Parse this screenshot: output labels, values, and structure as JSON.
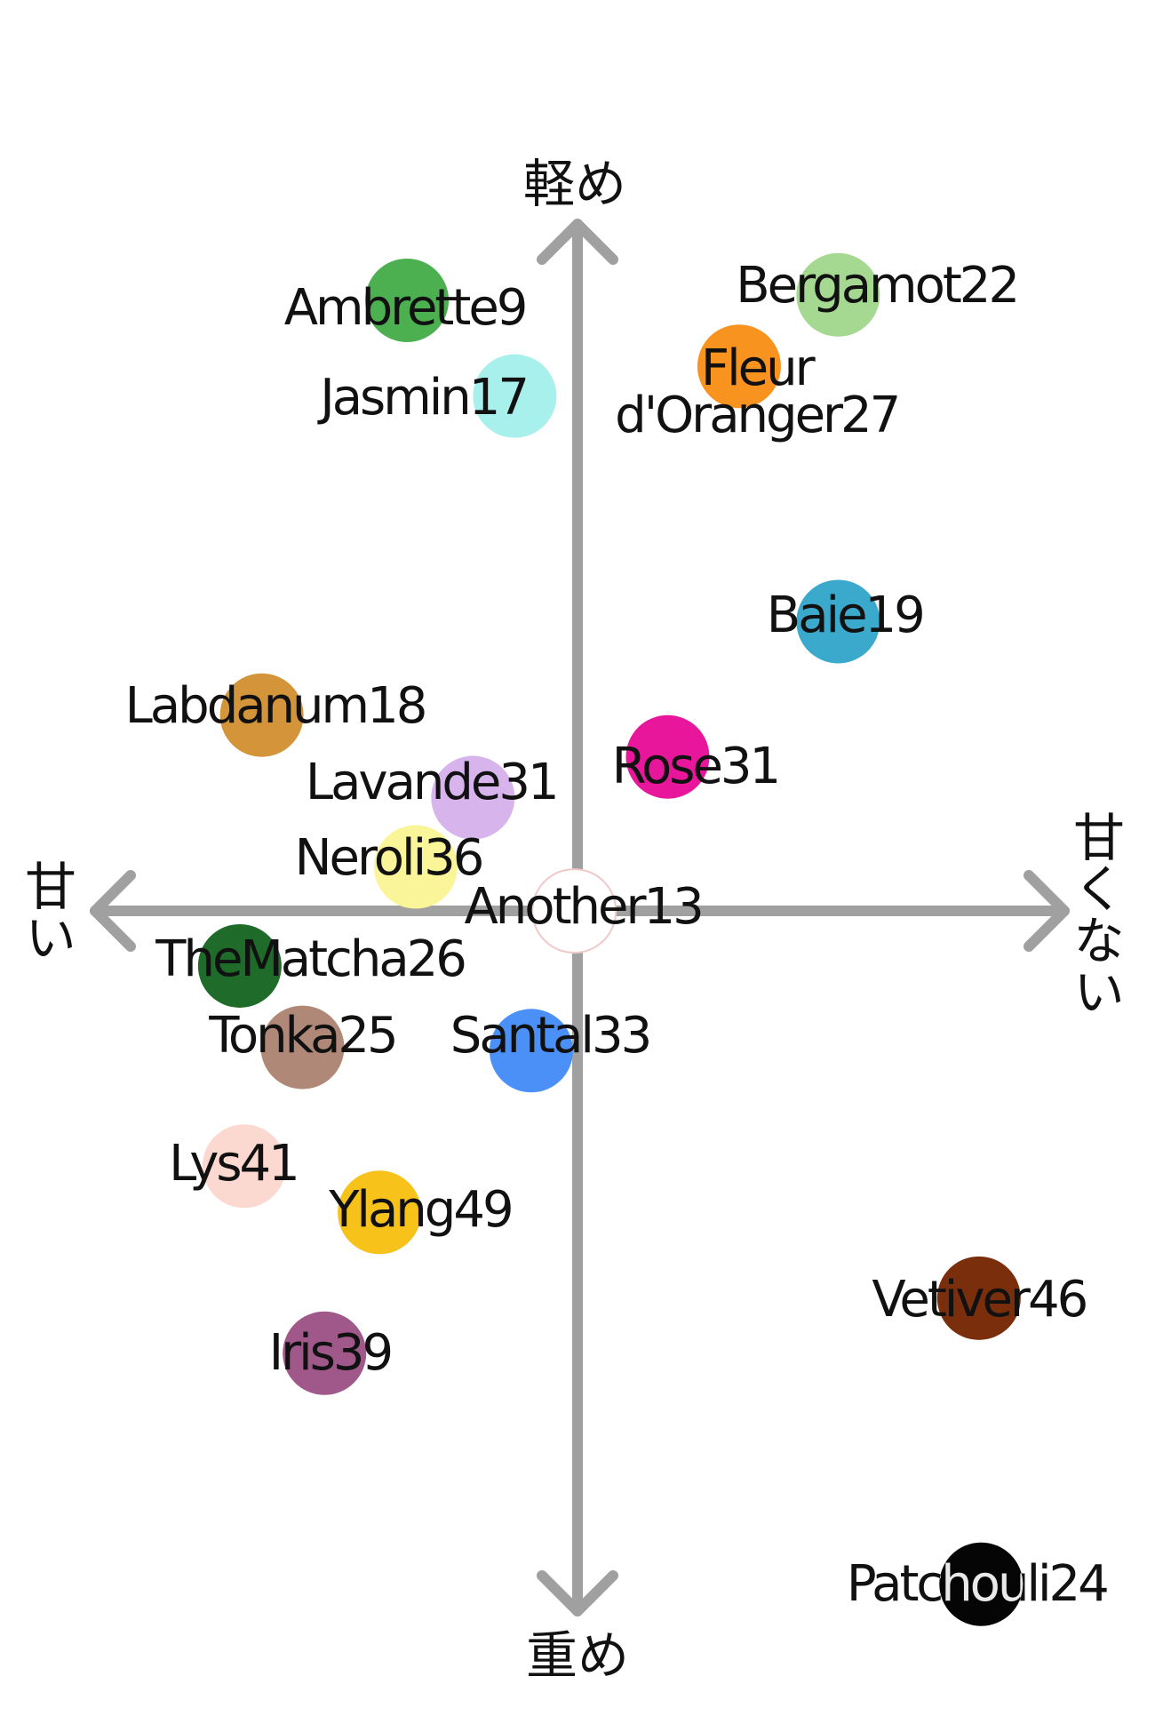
{
  "axes": {
    "top": "軽め",
    "bottom": "重め",
    "left": "甘い",
    "right": "甘くない"
  },
  "nodes": [
    {
      "label": "Ambrette9",
      "color": "#4caf50"
    },
    {
      "label": "Jasmin17",
      "color": "#a8f0ec"
    },
    {
      "label": "Bergamot22",
      "color": "#a5d890"
    },
    {
      "label": "Fleur d'Oranger27",
      "color": "#f7931e"
    },
    {
      "label": "Baie19",
      "color": "#3aa9cc"
    },
    {
      "label": "Labdanum18",
      "color": "#d4943a"
    },
    {
      "label": "Lavande31",
      "color": "#d8b4ec"
    },
    {
      "label": "Rose31",
      "color": "#e8169a"
    },
    {
      "label": "Neroli36",
      "color": "#fbf59a"
    },
    {
      "label": "Another13",
      "color": "#ffffff"
    },
    {
      "label": "TheMatcha26",
      "color": "#1e6b2a"
    },
    {
      "label": "Tonka25",
      "color": "#b08878"
    },
    {
      "label": "Santal33",
      "color": "#4a90f7"
    },
    {
      "label": "Lys41",
      "color": "#fbd8d0"
    },
    {
      "label": "Ylang49",
      "color": "#f7c21a"
    },
    {
      "label": "Iris39",
      "color": "#a0588a"
    },
    {
      "label": "Vetiver46",
      "color": "#7a2e0c"
    },
    {
      "label": "Patchouli24",
      "color": "#050505"
    }
  ]
}
